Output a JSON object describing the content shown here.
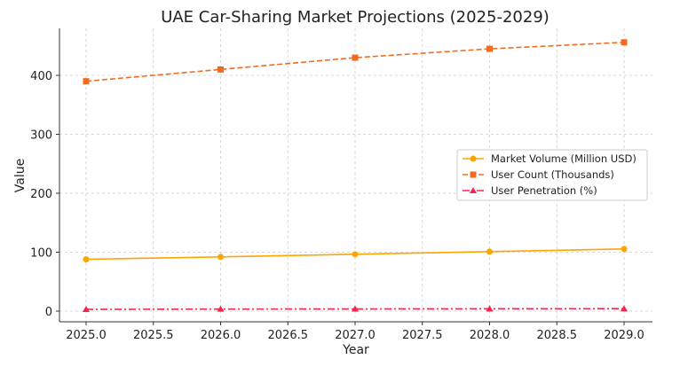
{
  "chart_data": {
    "type": "line",
    "title": "UAE Car-Sharing Market Projections (2025-2029)",
    "xlabel": "Year",
    "ylabel": "Value",
    "x": [
      2025,
      2026,
      2027,
      2028,
      2029
    ],
    "xlim": [
      2024.8,
      2029.2
    ],
    "ylim": [
      -18,
      482
    ],
    "xticks": [
      "2025.0",
      "2025.5",
      "2026.0",
      "2026.5",
      "2027.0",
      "2027.5",
      "2028.0",
      "2028.5",
      "2029.0"
    ],
    "yticks": [
      "0",
      "100",
      "200",
      "300",
      "400"
    ],
    "grid": true,
    "legend_position": "center-right",
    "series": [
      {
        "name": "Market Volume (Million USD)",
        "values": [
          88,
          92,
          96.5,
          101,
          105.5
        ],
        "color": "#FFA500",
        "marker": "circle",
        "dash": "solid"
      },
      {
        "name": "User Count (Thousands)",
        "values": [
          390,
          410,
          430,
          445,
          456
        ],
        "color": "#F26B21",
        "marker": "square",
        "dash": "dashed"
      },
      {
        "name": "User Penetration (%)",
        "values": [
          3,
          3.5,
          3.7,
          4,
          4.2
        ],
        "color": "#F0264F",
        "marker": "triangle",
        "dash": "dashdot"
      }
    ]
  }
}
